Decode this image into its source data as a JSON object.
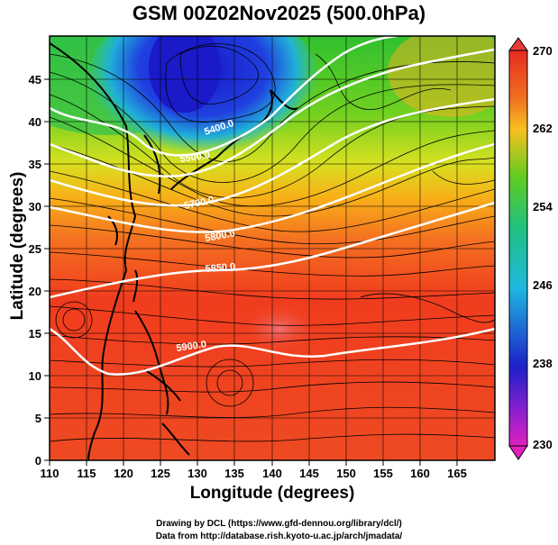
{
  "title": "GSM 00Z02Nov2025 (500.0hPa)",
  "axes": {
    "xlabel": "Longitude (degrees)",
    "ylabel": "Latitude  (degrees)",
    "x_ticks": [
      "110",
      "115",
      "120",
      "125",
      "130",
      "135",
      "140",
      "145",
      "150",
      "155",
      "160",
      "165"
    ],
    "y_ticks": [
      "0",
      "5",
      "10",
      "15",
      "20",
      "25",
      "30",
      "35",
      "40",
      "45"
    ]
  },
  "colorbar": {
    "labels": [
      "270",
      "262",
      "254",
      "246",
      "238",
      "230"
    ],
    "min": 230,
    "max": 270
  },
  "contours": [
    {
      "label": "5400.0"
    },
    {
      "label": "5500.0"
    },
    {
      "label": "5700.0"
    },
    {
      "label": "5800.0"
    },
    {
      "label": "5850.0"
    },
    {
      "label": "5900.0"
    }
  ],
  "credits": {
    "line1": "Drawing by DCL (https://www.gfd-dennou.org/library/dcl/)",
    "line2": "Data from http://database.rish.kyoto-u.ac.jp/arch/jmadata/"
  },
  "colors": {
    "cold": "#1e1ed0",
    "cool": "#20c0d8",
    "mid": "#40cc20",
    "warm": "#f0e020",
    "hot": "#f02e1e",
    "cap_top": "#e83020",
    "cap_bottom": "#e020c0"
  },
  "chart_data": {
    "type": "heatmap",
    "title": "GSM 00Z02Nov2025 (500.0hPa)",
    "xlabel": "Longitude (degrees)",
    "ylabel": "Latitude  (degrees)",
    "xlim": [
      110,
      170
    ],
    "ylim": [
      0,
      50
    ],
    "x_ticks": [
      110,
      115,
      120,
      125,
      130,
      135,
      140,
      145,
      150,
      155,
      160,
      165
    ],
    "y_ticks": [
      0,
      5,
      10,
      15,
      20,
      25,
      30,
      35,
      40,
      45
    ],
    "colorbar_range": [
      230,
      270
    ],
    "colorbar_ticks": [
      270,
      262,
      254,
      246,
      238,
      230
    ],
    "contour_levels": [
      5400,
      5500,
      5700,
      5800,
      5850,
      5900
    ]
  }
}
